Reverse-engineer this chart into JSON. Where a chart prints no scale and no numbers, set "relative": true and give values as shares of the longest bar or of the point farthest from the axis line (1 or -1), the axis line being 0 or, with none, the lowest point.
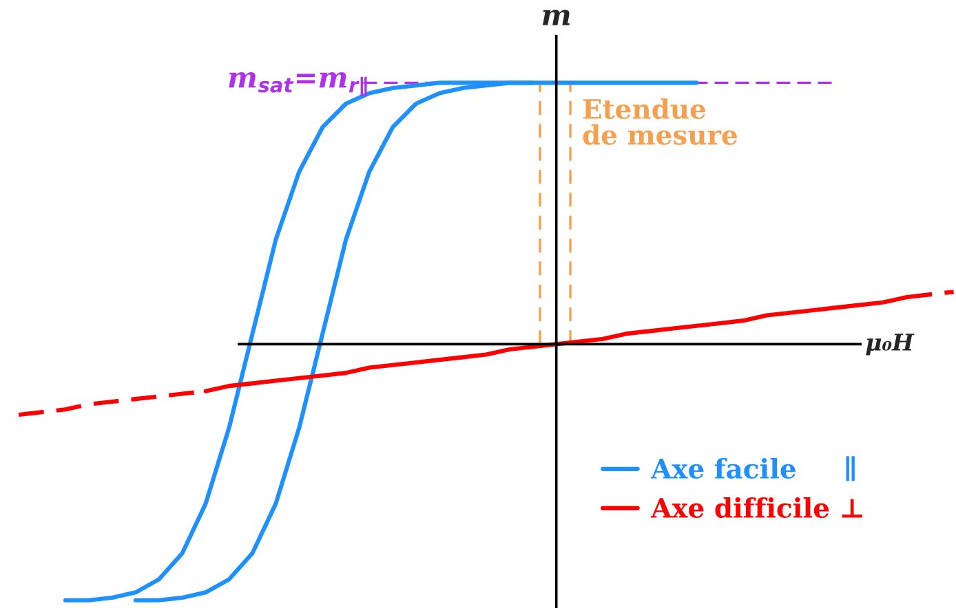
{
  "chart_data": {
    "type": "line",
    "relative": true,
    "xlabel": "μ₀H",
    "ylabel": "m",
    "legend": "bottom right",
    "annotations": [
      "Etendue\nde mesure"
    ],
    "categories": [
      null,
      null,
      null,
      null,
      null,
      null,
      null,
      null,
      null,
      null,
      null,
      null,
      null,
      null,
      null,
      null,
      null,
      null,
      null,
      null,
      null,
      null,
      null,
      null,
      null,
      null,
      null,
      null,
      null,
      null,
      null,
      null,
      null,
      null,
      null,
      null,
      null,
      null,
      null,
      null,
      null
    ],
    "series": [
      {
        "name": "Axe facile     ∥",
        "color": "#1e90ff",
        "line_style": "solid",
        "values": [
          null,
          null,
          -0.98,
          -0.98,
          -0.97,
          -0.95,
          -0.9,
          -0.8,
          -0.61,
          -0.32,
          0.04,
          0.4,
          0.66,
          0.83,
          0.92,
          0.96,
          0.98,
          0.99,
          1,
          1,
          1,
          1,
          1,
          1,
          1,
          1,
          1,
          1,
          1,
          1,
          null,
          null,
          null,
          null,
          null,
          null,
          null,
          null,
          null,
          null,
          null
        ]
      },
      {
        "color": "#1e90ff",
        "line_style": "solid",
        "values": [
          null,
          null,
          null,
          null,
          null,
          -0.98,
          -0.98,
          -0.97,
          -0.95,
          -0.9,
          -0.8,
          -0.61,
          -0.32,
          0.04,
          0.4,
          0.66,
          0.83,
          0.92,
          0.96,
          0.98,
          0.99,
          1,
          1,
          null,
          null,
          null,
          null,
          null,
          null,
          null,
          null,
          null,
          null,
          null,
          null,
          null,
          null,
          null,
          null,
          null,
          null
        ]
      },
      {
        "color": "#ff0000",
        "line_style": "dashed",
        "values": [
          -0.27,
          -0.26,
          -0.25,
          -0.23,
          -0.22,
          -0.21,
          -0.2,
          -0.19,
          -0.18,
          null,
          null,
          null,
          null,
          null,
          null,
          null,
          null,
          null,
          null,
          null,
          null,
          null,
          null,
          null,
          null,
          null,
          null,
          null,
          null,
          null,
          null,
          null,
          null,
          null,
          null,
          null,
          null,
          null,
          null,
          null,
          null
        ]
      },
      {
        "name": "Axe difficile ⊥",
        "color": "#ff0000",
        "line_style": "solid",
        "values": [
          null,
          null,
          null,
          null,
          null,
          null,
          null,
          null,
          -0.18,
          -0.16,
          -0.15,
          -0.14,
          -0.13,
          -0.12,
          -0.11,
          -0.09,
          -0.08,
          -0.07,
          -0.06,
          -0.05,
          -0.04,
          -0.02,
          -0.01,
          0,
          0.01,
          0.02,
          0.04,
          0.05,
          0.06,
          0.07,
          0.08,
          0.09,
          0.11,
          0.12,
          0.13,
          0.14,
          0.15,
          0.16,
          0.18,
          null,
          null
        ]
      },
      {
        "color": "#ff0000",
        "line_style": "dashed",
        "values": [
          null,
          null,
          null,
          null,
          null,
          null,
          null,
          null,
          null,
          null,
          null,
          null,
          null,
          null,
          null,
          null,
          null,
          null,
          null,
          null,
          null,
          null,
          null,
          null,
          null,
          null,
          null,
          null,
          null,
          null,
          null,
          null,
          null,
          null,
          null,
          null,
          null,
          null,
          0.18,
          0.19,
          0.2
        ]
      }
    ],
    "ref_lines": [
      {
        "axis": "y",
        "value": 1,
        "label": "m$_{sat}$=m$_{r∥}$",
        "color": "#b030f0",
        "line_style": "dashed"
      }
    ]
  }
}
